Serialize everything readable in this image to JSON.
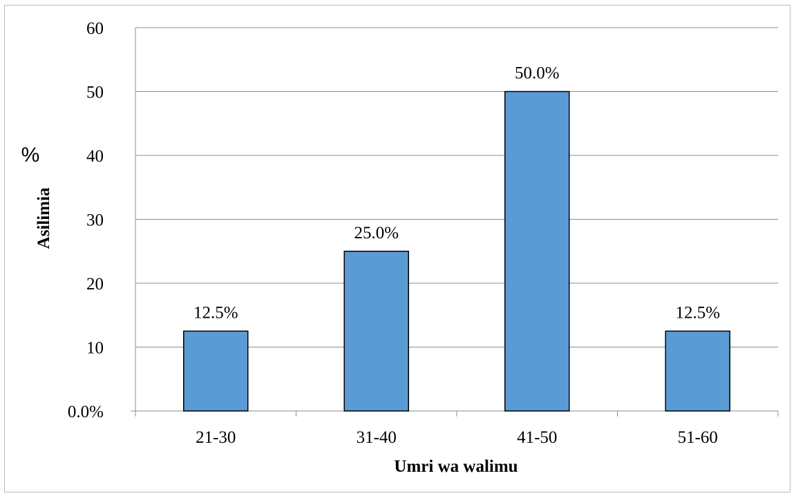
{
  "chart_data": {
    "type": "bar",
    "categories": [
      "21-30",
      "31-40",
      "41-50",
      "51-60"
    ],
    "values": [
      12.5,
      25.0,
      50.0,
      12.5
    ],
    "data_labels": [
      "12.5%",
      "25.0%",
      "50.0%",
      "12.5%"
    ],
    "yticks": [
      "0.0%",
      "10",
      "20",
      "30",
      "40",
      "50",
      "60"
    ],
    "ylim": [
      0,
      60
    ],
    "ystep": 10,
    "xlabel": "Umri wa walimu",
    "ylabel": "Asilimia",
    "yunit": "%",
    "grid": true,
    "legend": "none",
    "colors": {
      "bar_fill": "#5b9bd5",
      "bar_stroke": "#000000",
      "grid": "#8c8c8c",
      "axis": "#8c8c8c"
    }
  }
}
